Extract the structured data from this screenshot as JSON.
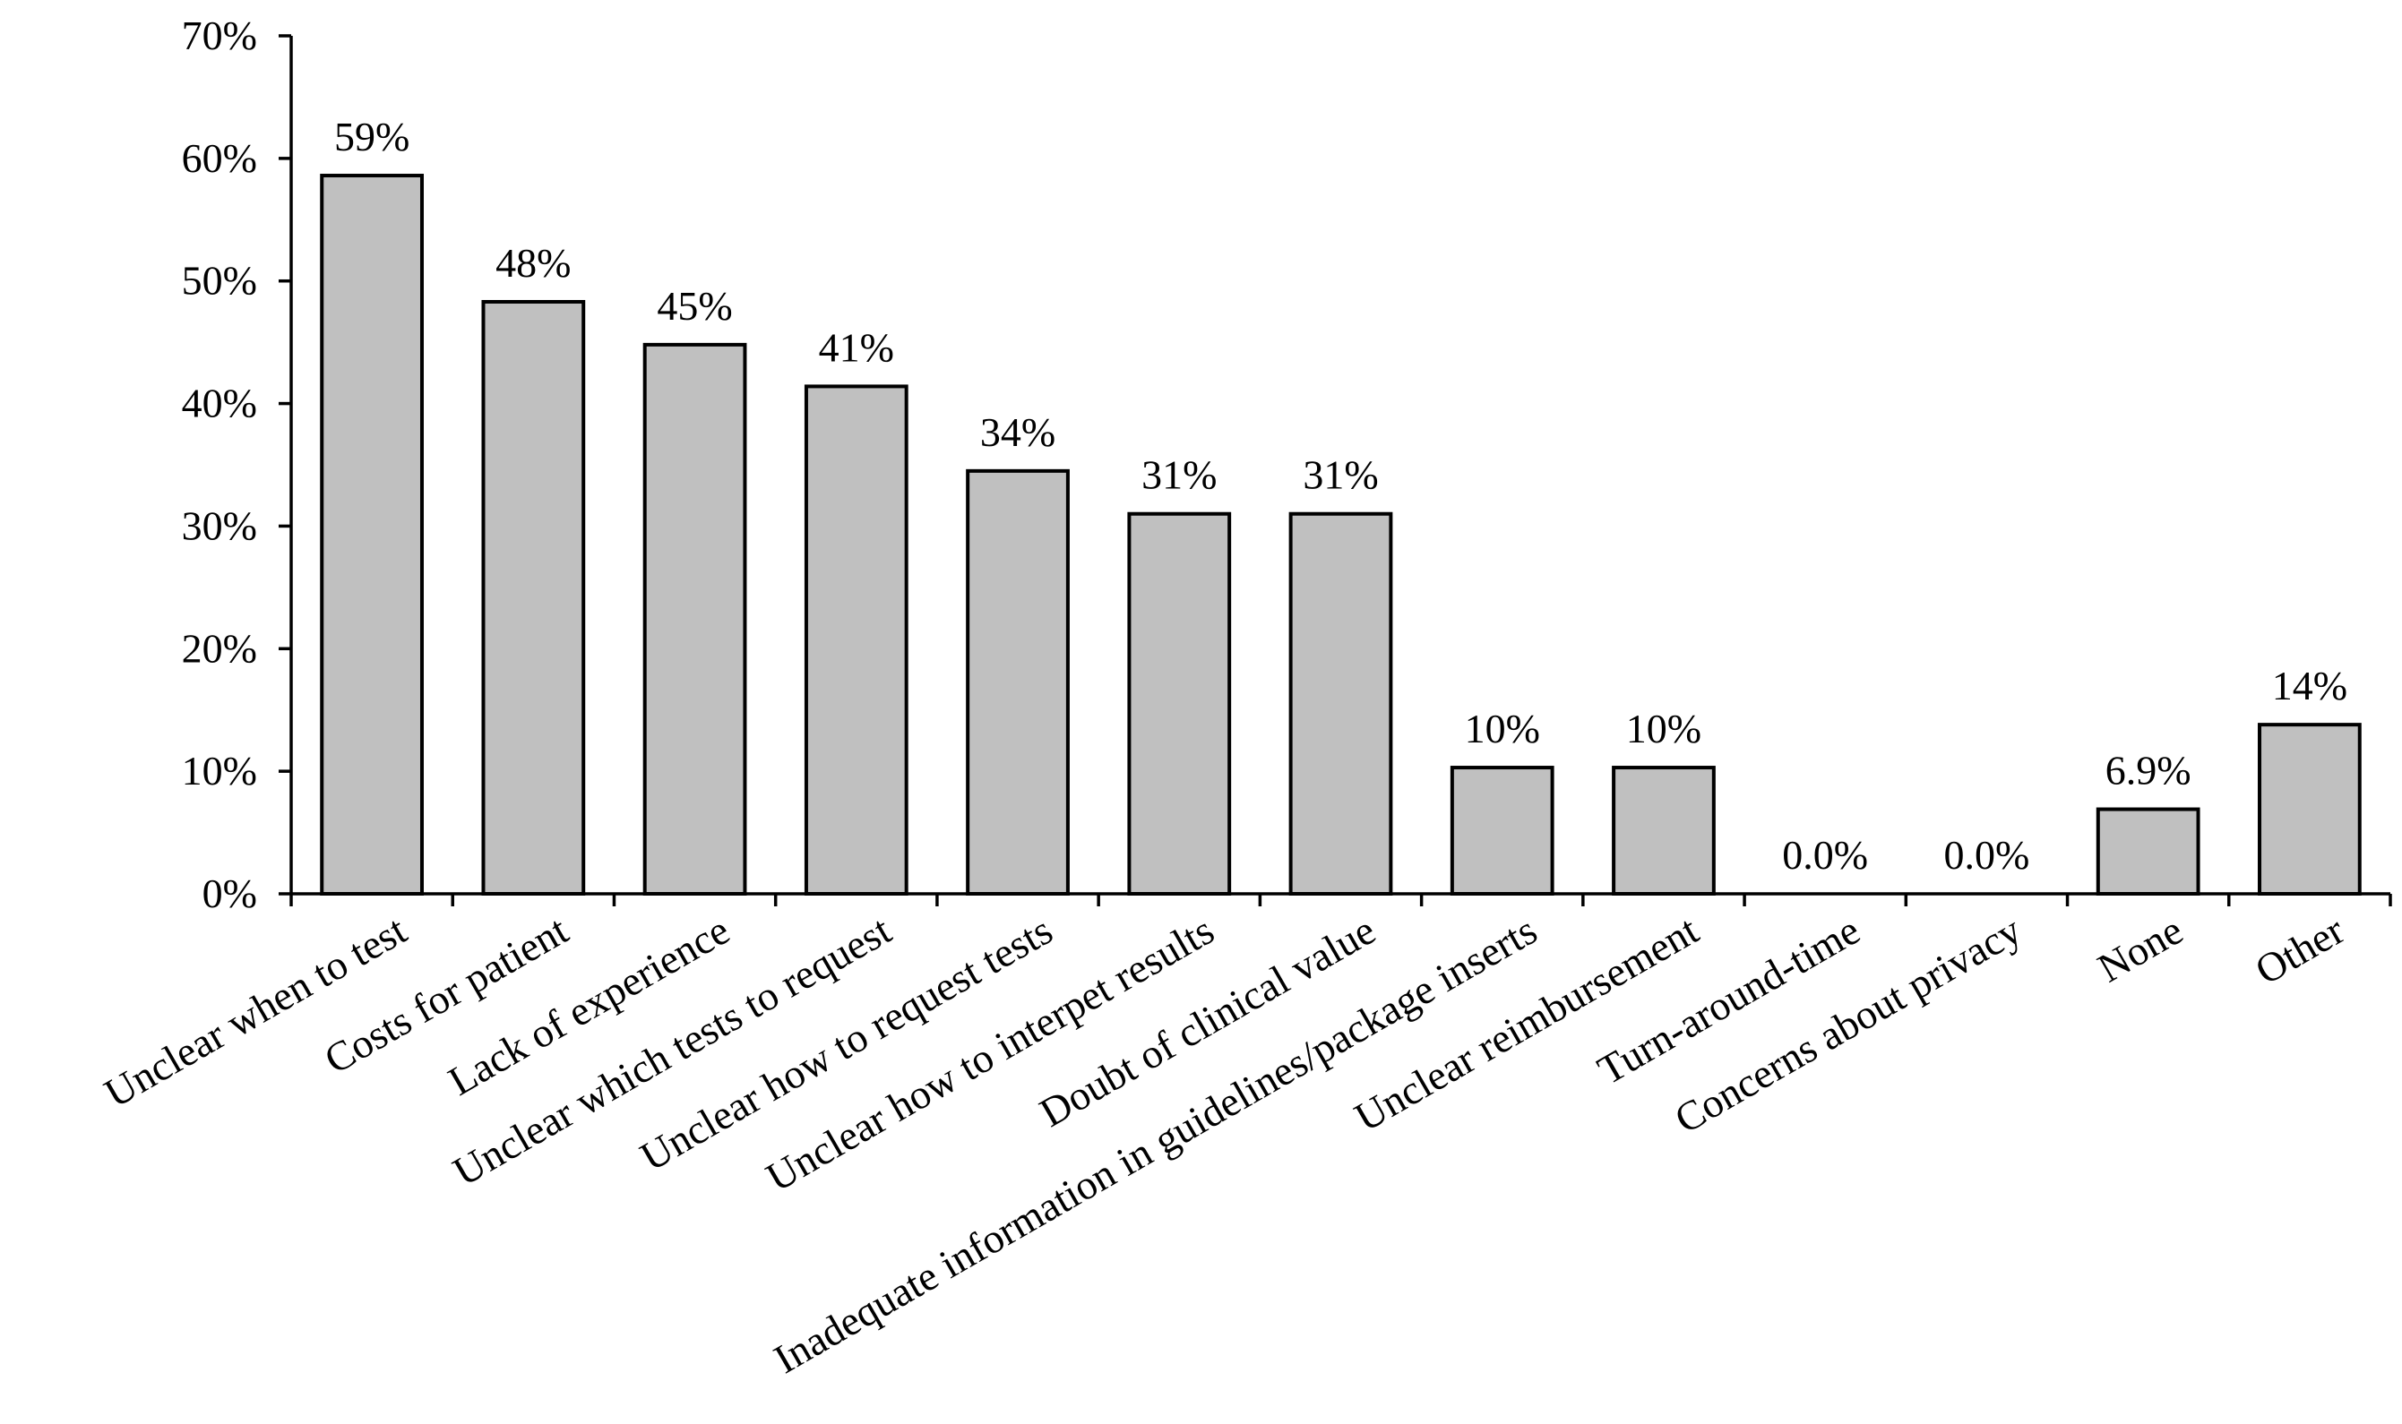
{
  "chart_data": {
    "type": "bar",
    "title": "",
    "xlabel": "",
    "ylabel": "",
    "ylim": [
      0,
      70
    ],
    "ytick_values": [
      0,
      10,
      20,
      30,
      40,
      50,
      60,
      70
    ],
    "ytick_labels": [
      "0%",
      "10%",
      "20%",
      "30%",
      "40%",
      "50%",
      "60%",
      "70%"
    ],
    "grid": false,
    "bar_color": "#c0c0c0",
    "bar_edge_color": "#000000",
    "categories": [
      "Unclear when to test",
      "Costs for patient",
      "Lack of experience",
      "Unclear which tests to request",
      "Unclear how to request tests",
      "Unclear how to interpet results",
      "Doubt of clinical value",
      "Inadequate information in guidelines/package inserts",
      "Unclear reimbursement",
      "Turn-around-time",
      "Concerns about privacy",
      "None",
      "Other"
    ],
    "values": [
      58.6,
      48.3,
      44.8,
      41.4,
      34.5,
      31.0,
      31.0,
      10.3,
      10.3,
      0.0,
      0.0,
      6.9,
      13.8
    ],
    "data_labels": [
      "59%",
      "48%",
      "45%",
      "41%",
      "34%",
      "31%",
      "31%",
      "10%",
      "10%",
      "0.0%",
      "0.0%",
      "6.9%",
      "14%"
    ]
  }
}
